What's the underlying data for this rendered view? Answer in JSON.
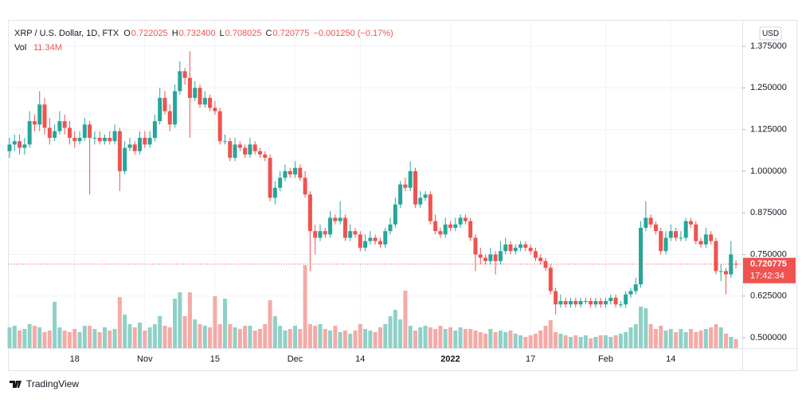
{
  "chart_data": {
    "type": "candlestick",
    "legend": {
      "symbol": "XRP / U.S. Dollar, 1D, FTX",
      "open_label": "O",
      "open": "0.722025",
      "high_label": "H",
      "high": "0.732400",
      "low_label": "L",
      "low": "0.708025",
      "close_label": "C",
      "close": "0.720775",
      "change": "−0.001250 (−0.17%)",
      "volume_label": "Vol",
      "volume": "11.34M"
    },
    "currency": "USD",
    "countdown": "17:42:34",
    "last_price_label": "0.720775",
    "watermark": "TradingView",
    "up_color": "#26a69a",
    "down_color": "#ef5350",
    "up_volume_color": "#8fd0c7",
    "down_volume_color": "#f5aaa6",
    "grid": true,
    "categories": [
      null,
      null,
      null,
      null,
      null,
      null,
      null,
      null,
      null,
      null,
      null,
      null,
      null,
      "18",
      null,
      null,
      null,
      null,
      null,
      null,
      null,
      null,
      null,
      null,
      null,
      null,
      null,
      "Nov",
      null,
      null,
      null,
      null,
      null,
      null,
      null,
      null,
      null,
      null,
      null,
      null,
      null,
      "15",
      null,
      null,
      null,
      null,
      null,
      null,
      null,
      null,
      null,
      null,
      null,
      null,
      null,
      null,
      null,
      "Dec",
      null,
      null,
      null,
      null,
      null,
      null,
      null,
      null,
      null,
      null,
      null,
      null,
      "14",
      null,
      null,
      null,
      null,
      null,
      null,
      null,
      null,
      null,
      null,
      null,
      null,
      null,
      null,
      null,
      null,
      null,
      "2022",
      null,
      null,
      null,
      null,
      null,
      null,
      null,
      null,
      null,
      null,
      null,
      null,
      null,
      null,
      null,
      "17",
      null,
      null,
      null,
      null,
      null,
      null,
      null,
      null,
      null,
      null,
      null,
      null,
      null,
      null,
      "Feb",
      null,
      null,
      null,
      null,
      null,
      null,
      null,
      null,
      null,
      null,
      null,
      null,
      "14",
      null,
      null,
      null,
      null,
      null,
      null,
      null,
      null,
      null,
      null,
      null,
      null,
      null
    ],
    "open": [
      1.06,
      1.08,
      1.09,
      1.07,
      1.08,
      1.15,
      1.14,
      1.2,
      1.13,
      1.1,
      1.12,
      1.15,
      1.13,
      1.1,
      1.09,
      1.1,
      1.14,
      1.1,
      1.1,
      1.09,
      1.1,
      1.09,
      1.12,
      1.0,
      1.07,
      1.08,
      1.06,
      1.1,
      1.08,
      1.1,
      1.15,
      1.22,
      1.18,
      1.14,
      1.24,
      1.3,
      1.28,
      1.22,
      1.25,
      1.2,
      1.22,
      1.19,
      1.18,
      1.09,
      1.09,
      1.04,
      1.08,
      1.07,
      1.05,
      1.08,
      1.06,
      1.05,
      1.04,
      0.92,
      0.95,
      0.98,
      1.0,
      0.99,
      1.01,
      0.98,
      0.93,
      0.82,
      0.8,
      0.82,
      0.81,
      0.86,
      0.85,
      0.86,
      0.8,
      0.82,
      0.81,
      0.77,
      0.79,
      0.8,
      0.79,
      0.78,
      0.82,
      0.84,
      0.9,
      0.96,
      0.95,
      1.0,
      0.9,
      0.92,
      0.93,
      0.85,
      0.82,
      0.81,
      0.84,
      0.83,
      0.84,
      0.86,
      0.85,
      0.8,
      0.75,
      0.74,
      0.73,
      0.75,
      0.73,
      0.76,
      0.78,
      0.76,
      0.77,
      0.78,
      0.77,
      0.76,
      0.74,
      0.73,
      0.71,
      0.64,
      0.6,
      0.61,
      0.6,
      0.61,
      0.6,
      0.61,
      0.61,
      0.6,
      0.61,
      0.6,
      0.61,
      0.62,
      0.6,
      0.6,
      0.63,
      0.64,
      0.66,
      0.83,
      0.86,
      0.84,
      0.82,
      0.76,
      0.8,
      0.82,
      0.8,
      0.8,
      0.85,
      0.84,
      0.79,
      0.78,
      0.81,
      0.79,
      0.7,
      0.7,
      0.69,
      0.722025
    ],
    "high": [
      1.1,
      1.11,
      1.11,
      1.1,
      1.18,
      1.17,
      1.24,
      1.22,
      1.16,
      1.14,
      1.18,
      1.17,
      1.15,
      1.12,
      1.12,
      1.16,
      1.15,
      1.12,
      1.12,
      1.11,
      1.12,
      1.14,
      1.13,
      1.09,
      1.1,
      1.09,
      1.12,
      1.12,
      1.12,
      1.17,
      1.25,
      1.24,
      1.2,
      1.26,
      1.33,
      1.31,
      1.36,
      1.27,
      1.26,
      1.24,
      1.23,
      1.21,
      1.19,
      1.11,
      1.1,
      1.1,
      1.09,
      1.08,
      1.1,
      1.09,
      1.07,
      1.06,
      1.05,
      0.97,
      1.0,
      1.02,
      1.01,
      1.03,
      1.02,
      1.0,
      0.94,
      0.84,
      0.84,
      0.83,
      0.88,
      0.87,
      0.91,
      0.87,
      0.84,
      0.83,
      0.82,
      0.81,
      0.82,
      0.81,
      0.8,
      0.83,
      0.86,
      0.92,
      0.97,
      0.98,
      1.03,
      1.01,
      0.94,
      0.94,
      0.94,
      0.87,
      0.83,
      0.86,
      0.85,
      0.86,
      0.87,
      0.87,
      0.86,
      0.81,
      0.77,
      0.75,
      0.77,
      0.76,
      0.79,
      0.8,
      0.79,
      0.78,
      0.79,
      0.79,
      0.78,
      0.77,
      0.75,
      0.74,
      0.72,
      0.65,
      0.63,
      0.62,
      0.62,
      0.62,
      0.62,
      0.62,
      0.62,
      0.62,
      0.62,
      0.62,
      0.63,
      0.63,
      0.61,
      0.64,
      0.65,
      0.68,
      0.85,
      0.91,
      0.87,
      0.85,
      0.83,
      0.82,
      0.84,
      0.83,
      0.82,
      0.86,
      0.86,
      0.85,
      0.8,
      0.83,
      0.82,
      0.8,
      0.72,
      0.71,
      0.79,
      0.7324
    ],
    "low": [
      1.04,
      1.06,
      1.05,
      1.05,
      1.07,
      1.12,
      1.12,
      1.11,
      1.08,
      1.09,
      1.11,
      1.11,
      1.08,
      1.07,
      1.08,
      1.09,
      0.93,
      1.08,
      1.08,
      1.08,
      1.08,
      1.08,
      0.94,
      0.99,
      1.06,
      1.05,
      1.05,
      1.07,
      1.07,
      1.09,
      1.14,
      1.17,
      1.12,
      1.13,
      1.23,
      1.26,
      1.1,
      1.21,
      1.19,
      1.19,
      1.18,
      1.17,
      1.08,
      1.08,
      1.03,
      1.03,
      1.06,
      1.04,
      1.04,
      1.05,
      1.04,
      1.03,
      0.91,
      0.9,
      0.94,
      0.97,
      0.98,
      0.98,
      0.97,
      0.92,
      0.7,
      0.75,
      0.79,
      0.8,
      0.8,
      0.84,
      0.84,
      0.79,
      0.79,
      0.8,
      0.76,
      0.76,
      0.78,
      0.78,
      0.77,
      0.77,
      0.81,
      0.83,
      0.89,
      0.94,
      0.94,
      0.89,
      0.89,
      0.91,
      0.84,
      0.81,
      0.8,
      0.8,
      0.82,
      0.82,
      0.83,
      0.84,
      0.79,
      0.7,
      0.72,
      0.72,
      0.72,
      0.69,
      0.72,
      0.75,
      0.75,
      0.75,
      0.76,
      0.76,
      0.75,
      0.73,
      0.72,
      0.7,
      0.63,
      0.57,
      0.59,
      0.59,
      0.59,
      0.59,
      0.59,
      0.6,
      0.59,
      0.59,
      0.59,
      0.59,
      0.6,
      0.59,
      0.59,
      0.59,
      0.62,
      0.63,
      0.65,
      0.82,
      0.83,
      0.81,
      0.75,
      0.75,
      0.79,
      0.79,
      0.79,
      0.79,
      0.83,
      0.78,
      0.77,
      0.77,
      0.78,
      0.69,
      0.67,
      0.63,
      0.68,
      0.708025
    ],
    "close": [
      1.08,
      1.09,
      1.07,
      1.08,
      1.15,
      1.14,
      1.2,
      1.13,
      1.1,
      1.12,
      1.15,
      1.13,
      1.1,
      1.09,
      1.1,
      1.14,
      1.1,
      1.1,
      1.09,
      1.1,
      1.09,
      1.12,
      1.0,
      1.07,
      1.08,
      1.06,
      1.1,
      1.08,
      1.1,
      1.15,
      1.22,
      1.18,
      1.14,
      1.24,
      1.3,
      1.28,
      1.22,
      1.25,
      1.2,
      1.22,
      1.19,
      1.18,
      1.09,
      1.09,
      1.04,
      1.08,
      1.07,
      1.05,
      1.08,
      1.06,
      1.05,
      1.04,
      0.92,
      0.95,
      0.98,
      1.0,
      0.99,
      1.01,
      0.98,
      0.93,
      0.82,
      0.8,
      0.82,
      0.81,
      0.86,
      0.85,
      0.86,
      0.8,
      0.82,
      0.81,
      0.77,
      0.79,
      0.8,
      0.79,
      0.78,
      0.82,
      0.84,
      0.9,
      0.96,
      0.95,
      1.0,
      0.9,
      0.92,
      0.93,
      0.85,
      0.82,
      0.81,
      0.84,
      0.83,
      0.84,
      0.86,
      0.85,
      0.8,
      0.75,
      0.74,
      0.73,
      0.75,
      0.73,
      0.76,
      0.78,
      0.76,
      0.77,
      0.78,
      0.77,
      0.76,
      0.74,
      0.73,
      0.71,
      0.64,
      0.6,
      0.61,
      0.6,
      0.61,
      0.6,
      0.61,
      0.61,
      0.6,
      0.61,
      0.6,
      0.61,
      0.62,
      0.6,
      0.6,
      0.63,
      0.64,
      0.66,
      0.83,
      0.86,
      0.84,
      0.82,
      0.76,
      0.8,
      0.82,
      0.8,
      0.8,
      0.85,
      0.84,
      0.79,
      0.78,
      0.81,
      0.79,
      0.7,
      0.7,
      0.69,
      0.75,
      0.720775
    ],
    "volume": [
      26,
      28,
      22,
      24,
      30,
      28,
      26,
      20,
      22,
      58,
      26,
      22,
      20,
      24,
      20,
      28,
      28,
      24,
      20,
      26,
      22,
      24,
      64,
      42,
      30,
      26,
      32,
      22,
      26,
      30,
      40,
      28,
      26,
      62,
      70,
      40,
      70,
      36,
      30,
      28,
      26,
      65,
      30,
      62,
      30,
      26,
      24,
      28,
      28,
      22,
      24,
      30,
      60,
      40,
      28,
      22,
      24,
      28,
      24,
      104,
      30,
      28,
      30,
      24,
      22,
      28,
      20,
      22,
      18,
      22,
      30,
      24,
      22,
      20,
      26,
      30,
      40,
      48,
      36,
      72,
      28,
      22,
      26,
      28,
      26,
      24,
      28,
      24,
      26,
      22,
      26,
      24,
      24,
      22,
      20,
      18,
      24,
      20,
      22,
      20,
      22,
      18,
      16,
      14,
      16,
      18,
      22,
      28,
      35,
      20,
      18,
      16,
      14,
      16,
      14,
      16,
      12,
      14,
      16,
      16,
      14,
      16,
      18,
      20,
      26,
      30,
      52,
      50,
      30,
      24,
      28,
      22,
      24,
      20,
      24,
      20,
      24,
      20,
      22,
      24,
      26,
      30,
      26,
      18,
      14,
      11.34
    ],
    "ylim": [
      0.469,
      1.442
    ],
    "yticks": [
      {
        "value": 0.5,
        "label": "0.500000"
      },
      {
        "value": 0.625,
        "label": "0.625000"
      },
      {
        "value": 0.75,
        "label": "0.750000"
      },
      {
        "value": 0.875,
        "label": "0.875000"
      },
      {
        "value": 1.0,
        "label": "1.000000"
      },
      {
        "value": 1.125,
        "label": "1.125000"
      },
      {
        "value": 1.25,
        "label": "1.250000"
      },
      {
        "value": 1.375,
        "label": "1.375000"
      }
    ]
  }
}
